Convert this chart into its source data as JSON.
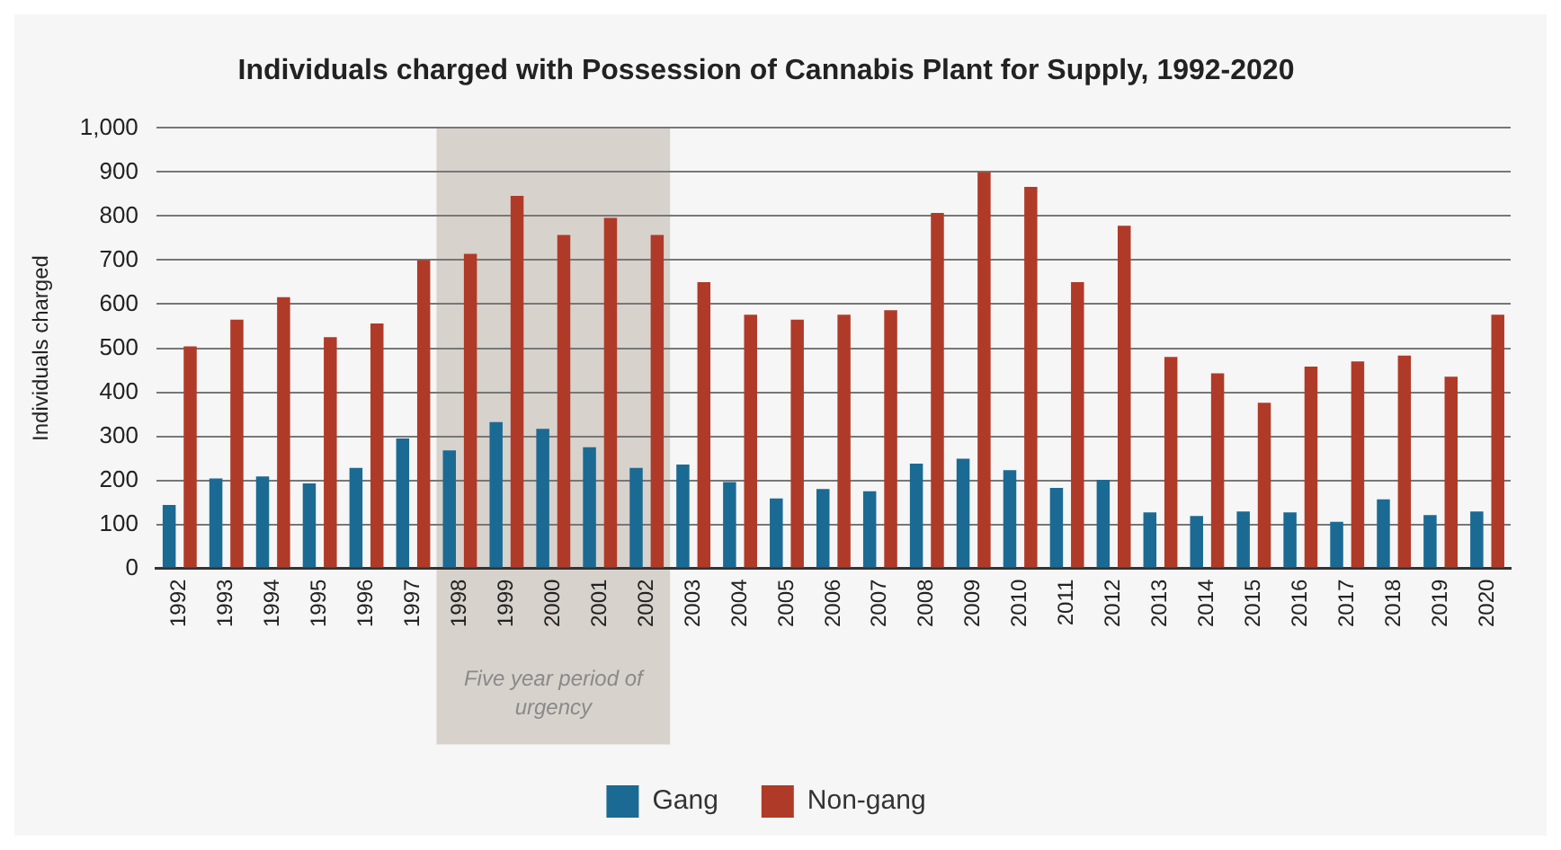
{
  "chart_data": {
    "type": "bar",
    "title": "Individuals charged with Possession of Cannabis Plant for Supply, 1992-2020",
    "ylabel": "Individuals charged",
    "categories": [
      "1992",
      "1993",
      "1994",
      "1995",
      "1996",
      "1997",
      "1998",
      "1999",
      "2000",
      "2001",
      "2002",
      "2003",
      "2004",
      "2005",
      "2006",
      "2007",
      "2008",
      "2009",
      "2010",
      "2011",
      "2012",
      "2013",
      "2014",
      "2015",
      "2016",
      "2017",
      "2018",
      "2019",
      "2020"
    ],
    "series": [
      {
        "name": "Gang",
        "color": "#1b6a93",
        "values": [
          144,
          204,
          209,
          193,
          228,
          295,
          268,
          332,
          317,
          275,
          228,
          236,
          196,
          159,
          180,
          175,
          238,
          249,
          223,
          183,
          201,
          127,
          119,
          129,
          127,
          106,
          157,
          121,
          129
        ]
      },
      {
        "name": "Non-gang",
        "color": "#b03a28",
        "values": [
          504,
          565,
          616,
          525,
          556,
          700,
          714,
          846,
          757,
          796,
          757,
          650,
          576,
          565,
          576,
          586,
          807,
          900,
          866,
          650,
          778,
          480,
          443,
          376,
          458,
          470,
          483,
          435,
          576
        ]
      }
    ],
    "ylim": [
      0,
      1000
    ],
    "yticks": [
      0,
      {
        "value": 100,
        "label": "100"
      },
      200,
      300,
      400,
      500,
      600,
      700,
      800,
      900,
      {
        "value": 1000,
        "label": "1,000"
      }
    ],
    "grid": "y",
    "legend": "bottom",
    "bands": [
      {
        "axis": "x",
        "from": "1998",
        "to": "2002",
        "label": "Five year period of urgency",
        "color": "#d8d2cd"
      }
    ]
  }
}
